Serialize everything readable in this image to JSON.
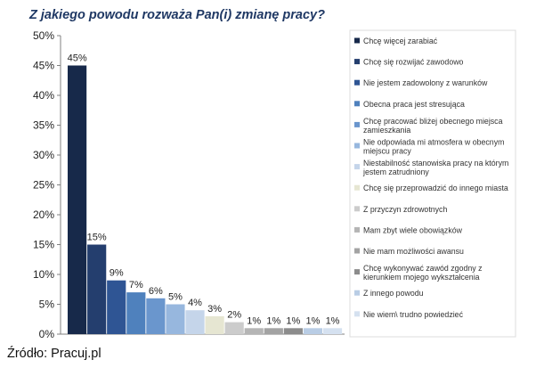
{
  "chart_data": {
    "type": "bar",
    "title": "Z jakiego powodu rozważa Pan(i) zmianę pracy?",
    "source": "Źródło: Pracuj.pl",
    "ylim": [
      0,
      50
    ],
    "yticks": [
      "0%",
      "5%",
      "10%",
      "15%",
      "20%",
      "25%",
      "30%",
      "35%",
      "40%",
      "45%",
      "50%"
    ],
    "grid": false,
    "legend_position": "right",
    "categories": [
      [
        "Chcę więcej zarabiać"
      ],
      [
        "Chcę się rozwijać zawodowo"
      ],
      [
        "Nie jestem zadowolony z warunków"
      ],
      [
        "Obecna praca jest stresująca"
      ],
      [
        "Chcę pracować bliżej obecnego miejsca",
        "zamieszkania"
      ],
      [
        "Nie odpowiada mi atmosfera w obecnym",
        "miejscu pracy"
      ],
      [
        "Niestabilność stanowiska pracy na którym",
        "jestem zatrudniony"
      ],
      [
        "Chcę się przeprowadzić do innego miasta"
      ],
      [
        "Z przyczyn zdrowotnych"
      ],
      [
        "Mam zbyt wiele obowiązków"
      ],
      [
        "Nie mam możliwości awansu"
      ],
      [
        "Chcę wykonywać zawód zgodny z",
        "kierunkiem mojego wykształcenia"
      ],
      [
        "Z innego powodu"
      ],
      [
        "Nie wiem\\ trudno powiedzieć"
      ]
    ],
    "values": [
      45,
      15,
      9,
      7,
      6,
      5,
      4,
      3,
      2,
      1,
      1,
      1,
      1,
      1
    ],
    "labels": [
      "45%",
      "15%",
      "9%",
      "7%",
      "6%",
      "5%",
      "4%",
      "3%",
      "2%",
      "1%",
      "1%",
      "1%",
      "1%",
      "1%"
    ],
    "colors": [
      "#17294a",
      "#243e6e",
      "#2f5594",
      "#4f81bd",
      "#6a96cd",
      "#97b7de",
      "#c5d5ea",
      "#e6e6d2",
      "#cccccc",
      "#b5b5b5",
      "#a3a3a3",
      "#8c8c8c",
      "#b9cde5",
      "#d5e1f0"
    ]
  }
}
